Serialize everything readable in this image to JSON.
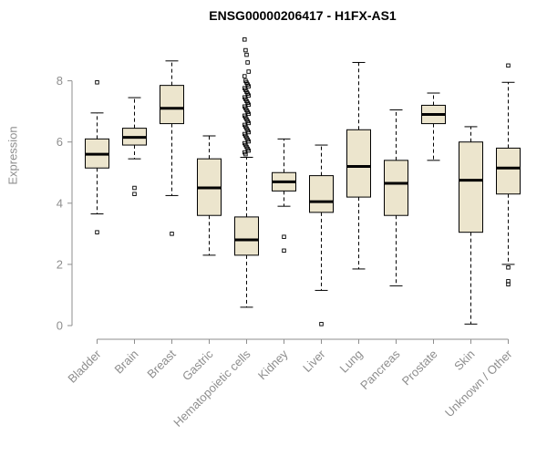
{
  "chart_data": {
    "type": "boxplot",
    "title": "ENSG00000206417 - H1FX-AS1",
    "ylabel": "Expression",
    "ylim": [
      0,
      8
    ],
    "yticks": [
      0,
      2,
      4,
      6,
      8
    ],
    "grid": false,
    "legend": "none",
    "colors": {
      "box_fill": "#ece5cd",
      "box_stroke": "#000000",
      "median": "#000000",
      "axis": "#8e8e8e",
      "title": "#000000",
      "background": "#ffffff"
    },
    "categories": [
      {
        "label": "Bladder",
        "stats": {
          "lo": 3.65,
          "q1": 5.15,
          "median": 5.6,
          "q3": 6.1,
          "hi": 6.95
        },
        "outliers": [
          7.95,
          3.05
        ]
      },
      {
        "label": "Brain",
        "stats": {
          "lo": 5.45,
          "q1": 5.9,
          "median": 6.15,
          "q3": 6.45,
          "hi": 7.45
        },
        "outliers": [
          4.5,
          4.3
        ]
      },
      {
        "label": "Breast",
        "stats": {
          "lo": 4.25,
          "q1": 6.6,
          "median": 7.1,
          "q3": 7.85,
          "hi": 8.65
        },
        "outliers": [
          3.0
        ]
      },
      {
        "label": "Gastric",
        "stats": {
          "lo": 2.3,
          "q1": 3.6,
          "median": 4.5,
          "q3": 5.45,
          "hi": 6.2
        },
        "outliers": []
      },
      {
        "label": "Hematopoietic cells",
        "stats": {
          "lo": 0.6,
          "q1": 2.3,
          "median": 2.8,
          "q3": 3.55,
          "hi": 5.5
        },
        "outliers": [
          9.35,
          9.0,
          8.85,
          8.6,
          8.3,
          8.15,
          8.0,
          7.94,
          7.88,
          7.82,
          7.76,
          7.7,
          7.64,
          7.58,
          7.52,
          7.46,
          7.4,
          7.34,
          7.28,
          7.22,
          7.16,
          7.1,
          7.04,
          6.98,
          6.92,
          6.86,
          6.8,
          6.74,
          6.68,
          6.62,
          6.56,
          6.5,
          6.44,
          6.38,
          6.32,
          6.26,
          6.2,
          6.14,
          6.08,
          6.02,
          5.96,
          5.9,
          5.84,
          5.78,
          5.72,
          5.66,
          5.6
        ]
      },
      {
        "label": "Kidney",
        "stats": {
          "lo": 3.9,
          "q1": 4.4,
          "median": 4.7,
          "q3": 5.0,
          "hi": 6.1
        },
        "outliers": [
          2.9,
          2.45
        ]
      },
      {
        "label": "Liver",
        "stats": {
          "lo": 1.15,
          "q1": 3.7,
          "median": 4.05,
          "q3": 4.9,
          "hi": 5.9
        },
        "outliers": [
          0.05
        ]
      },
      {
        "label": "Lung",
        "stats": {
          "lo": 1.85,
          "q1": 4.2,
          "median": 5.2,
          "q3": 6.4,
          "hi": 8.6
        },
        "outliers": []
      },
      {
        "label": "Pancreas",
        "stats": {
          "lo": 1.3,
          "q1": 3.6,
          "median": 4.65,
          "q3": 5.4,
          "hi": 7.05
        },
        "outliers": []
      },
      {
        "label": "Prostate",
        "stats": {
          "lo": 5.4,
          "q1": 6.6,
          "median": 6.9,
          "q3": 7.2,
          "hi": 7.6
        },
        "outliers": []
      },
      {
        "label": "Skin",
        "stats": {
          "lo": 0.05,
          "q1": 3.05,
          "median": 4.75,
          "q3": 6.0,
          "hi": 6.5
        },
        "outliers": []
      },
      {
        "label": "Unknown / Other",
        "stats": {
          "lo": 2.0,
          "q1": 4.3,
          "median": 5.15,
          "q3": 5.8,
          "hi": 7.95
        },
        "outliers": [
          8.5,
          1.9,
          1.45,
          1.35
        ]
      }
    ]
  }
}
